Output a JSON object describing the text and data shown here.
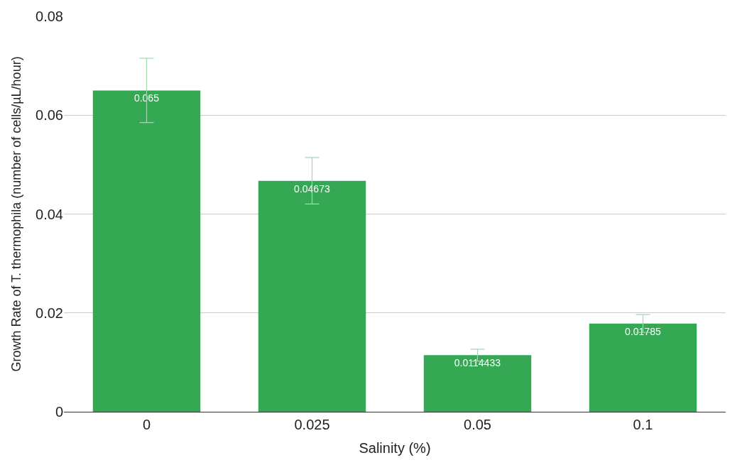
{
  "chart_data": {
    "type": "bar",
    "xlabel": "Salinity (%)",
    "ylabel": "Growth Rate of T. thermophila (number of cells/µL/hour)",
    "categories": [
      "0",
      "0.025",
      "0.05",
      "0.1"
    ],
    "series": [
      {
        "color": "#34a853",
        "values": [
          0.065,
          0.04673,
          0.0114433,
          0.01785
        ],
        "errors": [
          0.0065,
          0.0047,
          0.0012,
          0.0018
        ]
      }
    ],
    "data_labels": true,
    "ylim": [
      0,
      0.08
    ],
    "yticks": [
      0,
      0.02,
      0.04,
      0.06,
      0.08
    ],
    "grid": "y",
    "legend": false
  }
}
